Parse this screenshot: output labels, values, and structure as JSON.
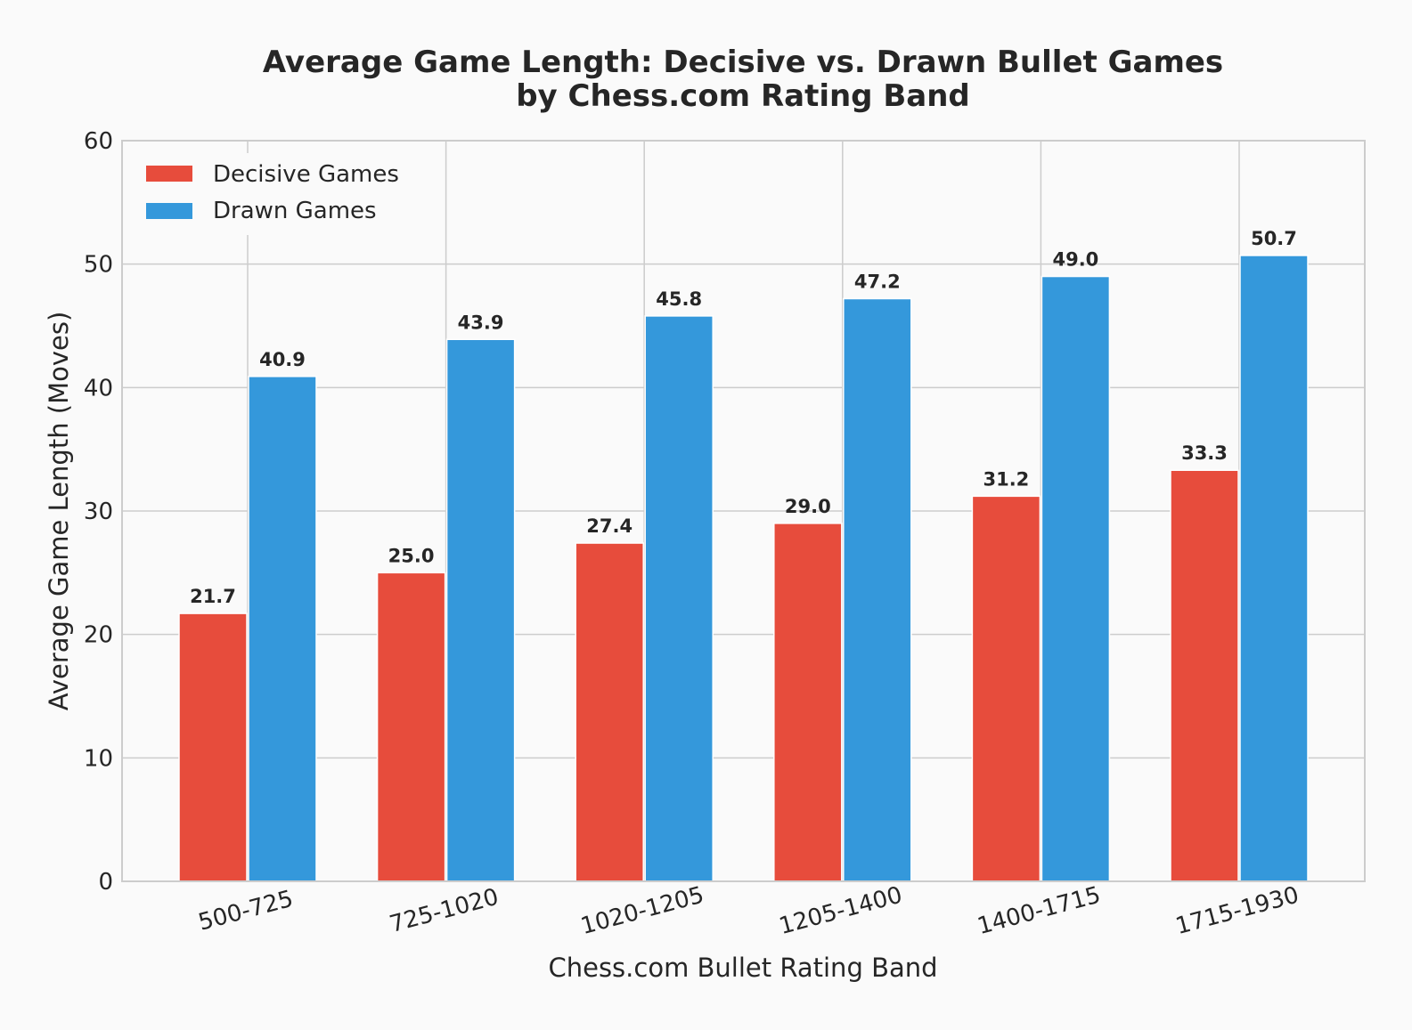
{
  "chart_data": {
    "type": "bar",
    "title_lines": [
      "Average Game Length: Decisive vs. Drawn Bullet Games",
      "by Chess.com Rating Band"
    ],
    "xlabel": "Chess.com Bullet Rating Band",
    "ylabel": "Average Game Length (Moves)",
    "categories": [
      "500-725",
      "725-1020",
      "1020-1205",
      "1205-1400",
      "1400-1715",
      "1715-1930"
    ],
    "series": [
      {
        "name": "Decisive Games",
        "color": "#e74c3c",
        "values": [
          21.7,
          25.0,
          27.4,
          29.0,
          31.2,
          33.3
        ]
      },
      {
        "name": "Drawn Games",
        "color": "#3498db",
        "values": [
          40.9,
          43.9,
          45.8,
          47.2,
          49.0,
          50.7
        ]
      }
    ],
    "ylim": [
      0,
      60
    ],
    "yticks": [
      0,
      10,
      20,
      30,
      40,
      50,
      60
    ],
    "grid": true,
    "legend_position": "top-left",
    "data_labels": true
  }
}
